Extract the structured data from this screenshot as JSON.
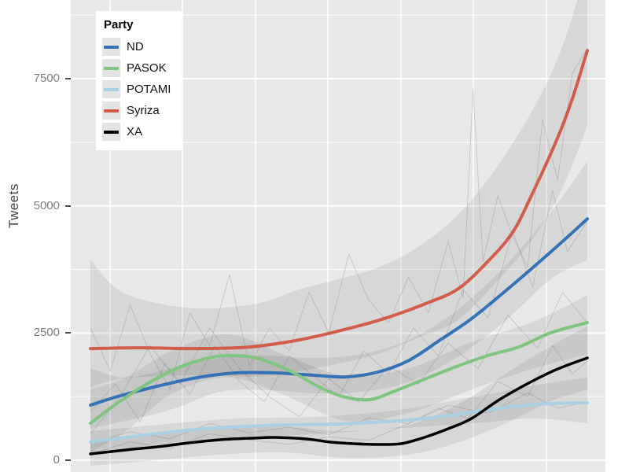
{
  "chart_data": {
    "type": "line",
    "title": "",
    "xlabel": "",
    "ylabel": "Tweets",
    "ylim": [
      0,
      8700
    ],
    "y_ticks": [
      0,
      2500,
      5000,
      7500
    ],
    "y_minor_ticks": [
      1250,
      3750,
      6250,
      8750
    ],
    "x_tick_labels": [],
    "x_axis_note": "x axis (dates) cropped out of the screenshot; x given as percent of time range",
    "grid": true,
    "legend_title": "Party",
    "legend_position": "top-left-inside",
    "panel_color": "#e9e9e9",
    "band_color": "rgba(60,60,60,0.10)",
    "series": [
      {
        "name": "ND",
        "color": "#3572b5",
        "points": [
          [
            0,
            1082
          ],
          [
            5.5,
            1252
          ],
          [
            13.4,
            1453
          ],
          [
            21.4,
            1623
          ],
          [
            29.3,
            1716
          ],
          [
            37.2,
            1716
          ],
          [
            45.1,
            1669
          ],
          [
            51.4,
            1638
          ],
          [
            57.8,
            1731
          ],
          [
            64.1,
            1963
          ],
          [
            70.4,
            2365
          ],
          [
            76.7,
            2782
          ],
          [
            83.1,
            3292
          ],
          [
            89.4,
            3818
          ],
          [
            94.8,
            4281
          ],
          [
            100,
            4745
          ]
        ]
      },
      {
        "name": "PASOK",
        "color": "#7fc57f",
        "points": [
          [
            0,
            726
          ],
          [
            5.5,
            1128
          ],
          [
            11.9,
            1530
          ],
          [
            18.2,
            1839
          ],
          [
            24.5,
            2025
          ],
          [
            29.3,
            2056
          ],
          [
            34,
            1994
          ],
          [
            40.3,
            1747
          ],
          [
            46.7,
            1407
          ],
          [
            51.4,
            1236
          ],
          [
            56.2,
            1190
          ],
          [
            60.9,
            1345
          ],
          [
            67.2,
            1592
          ],
          [
            73.6,
            1839
          ],
          [
            79.9,
            2056
          ],
          [
            86.2,
            2226
          ],
          [
            92.6,
            2504
          ],
          [
            100,
            2705
          ]
        ]
      },
      {
        "name": "POTAMI",
        "color": "#a9cfe5",
        "points": [
          [
            0,
            356
          ],
          [
            7.1,
            448
          ],
          [
            15,
            541
          ],
          [
            22.9,
            618
          ],
          [
            30.9,
            665
          ],
          [
            40.3,
            696
          ],
          [
            49.8,
            711
          ],
          [
            59.3,
            757
          ],
          [
            67.2,
            819
          ],
          [
            73.6,
            896
          ],
          [
            79.9,
            989
          ],
          [
            86.2,
            1066
          ],
          [
            92.6,
            1113
          ],
          [
            100,
            1128
          ]
        ]
      },
      {
        "name": "Syriza",
        "color": "#d15c4a",
        "points": [
          [
            0,
            2195
          ],
          [
            10,
            2210
          ],
          [
            21,
            2195
          ],
          [
            32,
            2225
          ],
          [
            42,
            2365
          ],
          [
            51,
            2565
          ],
          [
            59,
            2780
          ],
          [
            67,
            3060
          ],
          [
            74,
            3370
          ],
          [
            80,
            3910
          ],
          [
            85,
            4485
          ],
          [
            89,
            5255
          ],
          [
            94,
            6335
          ],
          [
            97,
            7110
          ],
          [
            100,
            8055
          ]
        ]
      },
      {
        "name": "XA",
        "color": "#000000",
        "points": [
          [
            0,
            124
          ],
          [
            7.1,
            201
          ],
          [
            13.4,
            263
          ],
          [
            19.8,
            340
          ],
          [
            26.1,
            402
          ],
          [
            32.4,
            433
          ],
          [
            37.2,
            448
          ],
          [
            43.5,
            417
          ],
          [
            48.3,
            356
          ],
          [
            53,
            325
          ],
          [
            57.8,
            309
          ],
          [
            62.5,
            325
          ],
          [
            67.2,
            448
          ],
          [
            72,
            618
          ],
          [
            76.7,
            819
          ],
          [
            83.1,
            1237
          ],
          [
            92.6,
            1731
          ],
          [
            100,
            2010
          ]
        ]
      }
    ],
    "confidence_bands": [
      {
        "name": "ND",
        "points": [
          [
            0,
            620,
            1810
          ],
          [
            7.1,
            775,
            1625
          ],
          [
            16.6,
            1005,
            1810
          ],
          [
            26.1,
            1345,
            2010
          ],
          [
            35.6,
            1375,
            2055
          ],
          [
            45.1,
            1315,
            2010
          ],
          [
            54.6,
            1345,
            2085
          ],
          [
            64.1,
            1545,
            2365
          ],
          [
            73.6,
            2010,
            2935
          ],
          [
            83.1,
            2705,
            3785
          ],
          [
            92.6,
            3555,
            4870
          ],
          [
            100,
            3940,
            5875
          ]
        ]
      },
      {
        "name": "PASOK",
        "points": [
          [
            0,
            155,
            1390
          ],
          [
            7.1,
            570,
            1625
          ],
          [
            16.6,
            1315,
            2165
          ],
          [
            27.7,
            1625,
            2475
          ],
          [
            38.8,
            1285,
            2085
          ],
          [
            51.4,
            775,
            1655
          ],
          [
            64.1,
            930,
            1810
          ],
          [
            76.7,
            1390,
            2320
          ],
          [
            89.4,
            1810,
            2735
          ],
          [
            100,
            2085,
            3245
          ]
        ]
      },
      {
        "name": "POTAMI",
        "points": [
          [
            0,
            110,
            570
          ],
          [
            13.4,
            310,
            695
          ],
          [
            29.3,
            450,
            820
          ],
          [
            45.1,
            510,
            850
          ],
          [
            60.9,
            620,
            975
          ],
          [
            76.7,
            725,
            1235
          ],
          [
            89.4,
            820,
            1470
          ],
          [
            100,
            725,
            1625
          ]
        ]
      },
      {
        "name": "Syriza",
        "points": [
          [
            0,
            1440,
            3940
          ],
          [
            5.5,
            1590,
            3355
          ],
          [
            13.4,
            1655,
            3090
          ],
          [
            22.9,
            1670,
            2980
          ],
          [
            34,
            1655,
            3090
          ],
          [
            41.9,
            1745,
            3355
          ],
          [
            49.8,
            1900,
            3555
          ],
          [
            57.8,
            2085,
            3785
          ],
          [
            65.7,
            2395,
            4175
          ],
          [
            73.6,
            2735,
            4790
          ],
          [
            81.5,
            3475,
            5720
          ],
          [
            89.4,
            4405,
            6955
          ],
          [
            94.9,
            5330,
            8115
          ],
          [
            100,
            6570,
            9700
          ]
        ]
      },
      {
        "name": "XA",
        "points": [
          [
            0,
            -110,
            385
          ],
          [
            13.4,
            0,
            510
          ],
          [
            26.1,
            110,
            620
          ],
          [
            38.8,
            155,
            665
          ],
          [
            51.4,
            45,
            570
          ],
          [
            64.1,
            110,
            695
          ],
          [
            75.1,
            385,
            1160
          ],
          [
            84.7,
            775,
            1775
          ],
          [
            92.6,
            1160,
            2240
          ],
          [
            100,
            1390,
            2630
          ]
        ]
      }
    ],
    "raw_series": [
      {
        "name": "Syriza-raw",
        "points": [
          [
            0,
            2600
          ],
          [
            4,
            1750
          ],
          [
            8,
            3050
          ],
          [
            12,
            2100
          ],
          [
            16,
            1400
          ],
          [
            20,
            2900
          ],
          [
            24,
            2250
          ],
          [
            28,
            3650
          ],
          [
            32,
            1850
          ],
          [
            36,
            2600
          ],
          [
            40,
            2150
          ],
          [
            44,
            3300
          ],
          [
            48,
            2500
          ],
          [
            52,
            4050
          ],
          [
            56,
            3150
          ],
          [
            60,
            2700
          ],
          [
            64,
            3600
          ],
          [
            68,
            2900
          ],
          [
            72,
            4300
          ],
          [
            75,
            3200
          ],
          [
            77,
            7300
          ],
          [
            79,
            3900
          ],
          [
            82,
            5200
          ],
          [
            85,
            4400
          ],
          [
            88,
            3800
          ],
          [
            91,
            6700
          ],
          [
            94,
            5500
          ],
          [
            97,
            7600
          ],
          [
            100,
            8100
          ]
        ]
      },
      {
        "name": "ND-raw",
        "points": [
          [
            0,
            950
          ],
          [
            5,
            1500
          ],
          [
            10,
            750
          ],
          [
            15,
            1900
          ],
          [
            20,
            1300
          ],
          [
            25,
            2250
          ],
          [
            30,
            1550
          ],
          [
            35,
            1150
          ],
          [
            40,
            2050
          ],
          [
            45,
            1650
          ],
          [
            50,
            1250
          ],
          [
            55,
            2150
          ],
          [
            60,
            1700
          ],
          [
            65,
            2600
          ],
          [
            70,
            2050
          ],
          [
            75,
            3350
          ],
          [
            80,
            2800
          ],
          [
            85,
            4500
          ],
          [
            89,
            3400
          ],
          [
            93,
            5300
          ],
          [
            96,
            4100
          ],
          [
            100,
            4700
          ]
        ]
      },
      {
        "name": "PASOK-raw",
        "points": [
          [
            0,
            520
          ],
          [
            6,
            1250
          ],
          [
            12,
            2250
          ],
          [
            18,
            1500
          ],
          [
            24,
            2600
          ],
          [
            30,
            1800
          ],
          [
            36,
            1250
          ],
          [
            42,
            850
          ],
          [
            48,
            1600
          ],
          [
            54,
            1150
          ],
          [
            60,
            1850
          ],
          [
            66,
            1500
          ],
          [
            72,
            2300
          ],
          [
            78,
            1800
          ],
          [
            84,
            2850
          ],
          [
            90,
            2200
          ],
          [
            95,
            3300
          ],
          [
            100,
            2700
          ]
        ]
      },
      {
        "name": "POTAMI-raw",
        "points": [
          [
            0,
            320
          ],
          [
            8,
            560
          ],
          [
            16,
            420
          ],
          [
            24,
            720
          ],
          [
            32,
            540
          ],
          [
            40,
            650
          ],
          [
            48,
            500
          ],
          [
            56,
            830
          ],
          [
            64,
            720
          ],
          [
            72,
            1080
          ],
          [
            80,
            920
          ],
          [
            88,
            1320
          ],
          [
            94,
            1020
          ],
          [
            100,
            1150
          ]
        ]
      },
      {
        "name": "XA-raw",
        "points": [
          [
            0,
            120
          ],
          [
            8,
            360
          ],
          [
            16,
            230
          ],
          [
            24,
            520
          ],
          [
            32,
            400
          ],
          [
            40,
            310
          ],
          [
            48,
            460
          ],
          [
            56,
            390
          ],
          [
            64,
            720
          ],
          [
            70,
            1020
          ],
          [
            76,
            820
          ],
          [
            82,
            1550
          ],
          [
            88,
            1250
          ],
          [
            93,
            2250
          ],
          [
            97,
            1700
          ],
          [
            100,
            1950
          ]
        ]
      }
    ]
  },
  "legend": {
    "title": "Party",
    "entries": [
      {
        "label": "ND",
        "color": "#3572b5"
      },
      {
        "label": "PASOK",
        "color": "#7fc57f"
      },
      {
        "label": "POTAMI",
        "color": "#a9cfe5"
      },
      {
        "label": "Syriza",
        "color": "#d15c4a"
      },
      {
        "label": "XA",
        "color": "#000000"
      }
    ]
  },
  "y_axis": {
    "title": "Tweets",
    "tick_labels": [
      "0",
      "2500",
      "5000",
      "7500"
    ]
  }
}
